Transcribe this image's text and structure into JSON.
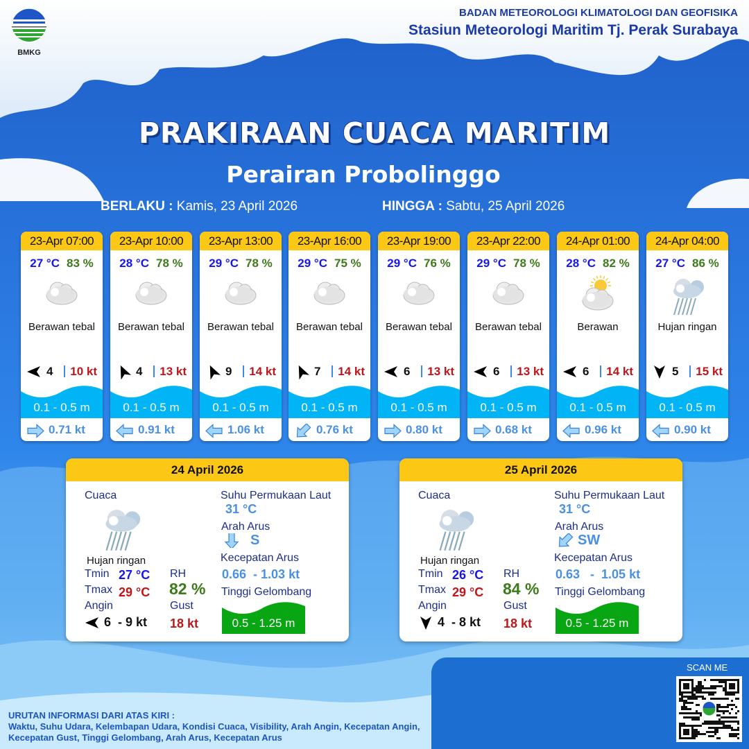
{
  "header": {
    "logo_text": "BMKG",
    "org": "BADAN METEOROLOGI KLIMATOLOGI DAN GEOFISIKA",
    "station": "Stasiun Meteorologi Maritim Tj. Perak Surabaya",
    "title": "PRAKIRAAN CUACA MARITIM",
    "subtitle": "Perairan Probolinggo",
    "valid_from_label": "BERLAKU :",
    "valid_from": "Kamis, 23 April 2026",
    "valid_to_label": "HINGGA :",
    "valid_to": "Sabtu, 25 April 2026"
  },
  "forecasts": [
    {
      "time": "23-Apr 07:00",
      "temp": "27 °C",
      "rh": "83 %",
      "icon": "cloud-icon",
      "condition": "Berawan tebal",
      "wind_arrow_deg": -90,
      "wind_speed": "4",
      "gust": "10 kt",
      "wave": "0.1 - 0.5 m",
      "current_arrow_deg": 0,
      "current_speed": "0.71 kt"
    },
    {
      "time": "23-Apr 10:00",
      "temp": "28 °C",
      "rh": "78 %",
      "icon": "cloud-icon",
      "condition": "Berawan tebal",
      "wind_arrow_deg": -25,
      "wind_speed": "4",
      "gust": "13 kt",
      "wave": "0.1 - 0.5 m",
      "current_arrow_deg": 180,
      "current_speed": "0.91 kt"
    },
    {
      "time": "23-Apr 13:00",
      "temp": "29 °C",
      "rh": "78 %",
      "icon": "cloud-icon",
      "condition": "Berawan tebal",
      "wind_arrow_deg": -25,
      "wind_speed": "9",
      "gust": "14 kt",
      "wave": "0.1 - 0.5 m",
      "current_arrow_deg": 180,
      "current_speed": "1.06 kt"
    },
    {
      "time": "23-Apr 16:00",
      "temp": "29 °C",
      "rh": "75 %",
      "icon": "cloud-icon",
      "condition": "Berawan tebal",
      "wind_arrow_deg": -25,
      "wind_speed": "7",
      "gust": "14 kt",
      "wave": "0.1 - 0.5 m",
      "current_arrow_deg": 135,
      "current_speed": "0.76 kt"
    },
    {
      "time": "23-Apr 19:00",
      "temp": "29 °C",
      "rh": "76 %",
      "icon": "cloud-icon",
      "condition": "Berawan tebal",
      "wind_arrow_deg": -90,
      "wind_speed": "6",
      "gust": "13 kt",
      "wave": "0.1 - 0.5 m",
      "current_arrow_deg": 0,
      "current_speed": "0.80 kt"
    },
    {
      "time": "23-Apr 22:00",
      "temp": "29 °C",
      "rh": "78 %",
      "icon": "cloud-icon",
      "condition": "Berawan tebal",
      "wind_arrow_deg": -90,
      "wind_speed": "6",
      "gust": "13 kt",
      "wave": "0.1 - 0.5 m",
      "current_arrow_deg": 0,
      "current_speed": "0.68 kt"
    },
    {
      "time": "24-Apr 01:00",
      "temp": "28 °C",
      "rh": "82 %",
      "icon": "sun-cloud-icon",
      "condition": "Berawan",
      "wind_arrow_deg": -90,
      "wind_speed": "6",
      "gust": "14 kt",
      "wave": "0.1 - 0.5 m",
      "current_arrow_deg": 180,
      "current_speed": "0.96 kt"
    },
    {
      "time": "24-Apr 04:00",
      "temp": "27 °C",
      "rh": "86 %",
      "icon": "rain-cloud-icon",
      "condition": "Hujan ringan",
      "wind_arrow_deg": 180,
      "wind_speed": "5",
      "gust": "15 kt",
      "wave": "0.1 - 0.5 m",
      "current_arrow_deg": 180,
      "current_speed": "0.90 kt"
    }
  ],
  "daily_labels": {
    "weather": "Cuaca",
    "sst": "Suhu Permukaan Laut",
    "current_dir": "Arah Arus",
    "current_speed": "Kecepatan Arus",
    "wave": "Tinggi Gelombang",
    "tmin": "Tmin",
    "tmax": "Tmax",
    "rh": "RH",
    "wind": "Angin",
    "gust": "Gust"
  },
  "daily": [
    {
      "date": "24 April 2026",
      "icon": "rain-cloud-icon",
      "condition": "Hujan ringan",
      "tmin": "27 °C",
      "tmax": "29 °C",
      "rh": "82 %",
      "wind_arrow_deg": -90,
      "wind": "6  - 9 kt",
      "gust": "18 kt",
      "sst": "31 °C",
      "current_arrow_deg": 90,
      "current_dir": "S",
      "current_speed": "0.66  - 1.03 kt",
      "wave": "0.5 - 1.25 m"
    },
    {
      "date": "25 April 2026",
      "icon": "rain-cloud-icon",
      "condition": "Hujan ringan",
      "tmin": "26 °C",
      "tmax": "29 °C",
      "rh": "84 %",
      "wind_arrow_deg": 180,
      "wind": "4  - 8 kt",
      "gust": "18 kt",
      "sst": "31 °C",
      "current_arrow_deg": 135,
      "current_dir": "SW",
      "current_speed": "0.63   -  1.05 kt",
      "wave": "0.5 - 1.25 m"
    }
  ],
  "footer": {
    "scan_label": "SCAN ME",
    "legend_title": "URUTAN INFORMASI DARI ATAS KIRI :",
    "legend_text": "Waktu, Suhu Udara, Kelembapan Udara, Kondisi Cuaca, Visibility, Arah Angin, Kecepatan Angin, Kecepatan Gust, Tinggi Gelombang, Arah Arus, Kecepatan Arus"
  },
  "colors": {
    "accent_yellow": "#fcc815",
    "temp": "#1515f0",
    "humidity": "#3d7a1a",
    "gust": "#c0161a",
    "wave_blue": "#00b4f5",
    "wave_green": "#07a612",
    "current": "#4a90e2"
  }
}
